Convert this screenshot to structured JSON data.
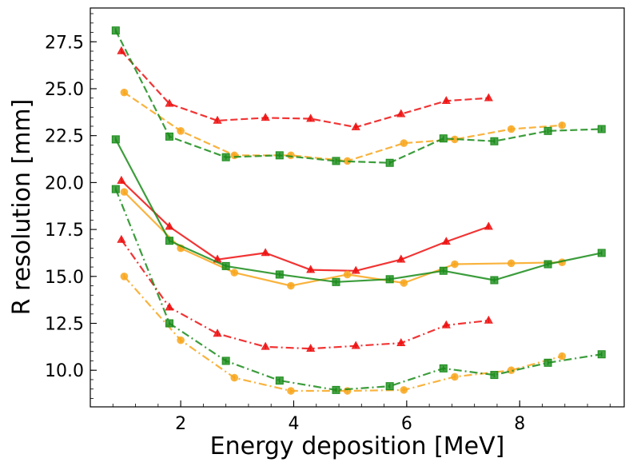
{
  "chart_data": {
    "type": "line",
    "title": "",
    "xlabel": "Energy deposition [MeV]",
    "ylabel": "R resolution [mm]",
    "xlim": [
      0.4,
      9.85
    ],
    "ylim": [
      8.05,
      29.3
    ],
    "xticks": [
      2,
      4,
      6,
      8
    ],
    "xtick_labels": [
      "2",
      "4",
      "6",
      "8"
    ],
    "yticks": [
      10.0,
      12.5,
      15.0,
      17.5,
      20.0,
      22.5,
      25.0,
      27.5
    ],
    "ytick_labels": [
      "10.0",
      "12.5",
      "15.0",
      "17.5",
      "20.0",
      "22.5",
      "25.0",
      "27.5"
    ],
    "grid": false,
    "legend": null,
    "series": [
      {
        "name": "red-dashed",
        "color": "#ee1111",
        "dash": "dashed",
        "marker": "triangle",
        "x": [
          0.95,
          1.8,
          2.65,
          3.5,
          4.3,
          5.1,
          5.9,
          6.7,
          7.45
        ],
        "y": [
          27.0,
          24.2,
          23.3,
          23.45,
          23.4,
          22.95,
          23.65,
          24.35,
          24.5
        ]
      },
      {
        "name": "orange-dashed",
        "color": "#f8a61c",
        "dash": "dashed",
        "marker": "circle",
        "x": [
          1.0,
          2.0,
          2.95,
          3.95,
          4.95,
          5.95,
          6.85,
          7.85,
          8.75
        ],
        "y": [
          24.8,
          22.75,
          21.45,
          21.45,
          21.15,
          22.1,
          22.3,
          22.85,
          23.05
        ]
      },
      {
        "name": "green-dashed",
        "color": "#1a8c1a",
        "dash": "dashed",
        "marker": "square",
        "x": [
          0.85,
          1.8,
          2.8,
          3.75,
          4.75,
          5.7,
          6.65,
          7.55,
          8.5,
          9.45
        ],
        "y": [
          28.1,
          22.45,
          21.35,
          21.45,
          21.15,
          21.05,
          22.35,
          22.2,
          22.75,
          22.85
        ]
      },
      {
        "name": "red-solid",
        "color": "#ee1111",
        "dash": "solid",
        "marker": "triangle",
        "x": [
          0.95,
          1.8,
          2.65,
          3.5,
          4.3,
          5.1,
          5.9,
          6.7,
          7.45
        ],
        "y": [
          20.1,
          17.65,
          15.9,
          16.25,
          15.35,
          15.3,
          15.9,
          16.85,
          17.65
        ]
      },
      {
        "name": "orange-solid",
        "color": "#f8a61c",
        "dash": "solid",
        "marker": "circle",
        "x": [
          1.0,
          2.0,
          2.95,
          3.95,
          4.95,
          5.95,
          6.85,
          7.85,
          8.75
        ],
        "y": [
          19.5,
          16.5,
          15.2,
          14.5,
          15.1,
          14.65,
          15.65,
          15.7,
          15.75
        ]
      },
      {
        "name": "green-solid",
        "color": "#1a8c1a",
        "dash": "solid",
        "marker": "square",
        "x": [
          0.85,
          1.8,
          2.8,
          3.75,
          4.75,
          5.7,
          6.65,
          7.55,
          8.5,
          9.45
        ],
        "y": [
          22.3,
          16.9,
          15.55,
          15.1,
          14.7,
          14.85,
          15.3,
          14.8,
          15.65,
          16.25
        ]
      },
      {
        "name": "red-dashdot",
        "color": "#ee1111",
        "dash": "dashdot",
        "marker": "triangle",
        "x": [
          0.95,
          1.8,
          2.65,
          3.5,
          4.3,
          5.1,
          5.9,
          6.7,
          7.45
        ],
        "y": [
          16.95,
          13.35,
          11.95,
          11.25,
          11.15,
          11.3,
          11.45,
          12.4,
          12.65
        ]
      },
      {
        "name": "orange-dashdot",
        "color": "#f8a61c",
        "dash": "dashdot",
        "marker": "circle",
        "x": [
          1.0,
          2.0,
          2.95,
          3.95,
          4.95,
          5.95,
          6.85,
          7.85,
          8.75
        ],
        "y": [
          15.0,
          11.6,
          9.6,
          8.9,
          8.9,
          8.95,
          9.65,
          10.0,
          10.75
        ]
      },
      {
        "name": "green-dashdot",
        "color": "#1a8c1a",
        "dash": "dashdot",
        "marker": "square",
        "x": [
          0.85,
          1.8,
          2.8,
          3.75,
          4.75,
          5.7,
          6.65,
          7.55,
          8.5,
          9.45
        ],
        "y": [
          19.65,
          12.5,
          10.5,
          9.45,
          8.95,
          9.15,
          10.1,
          9.75,
          10.4,
          10.85
        ]
      }
    ]
  }
}
